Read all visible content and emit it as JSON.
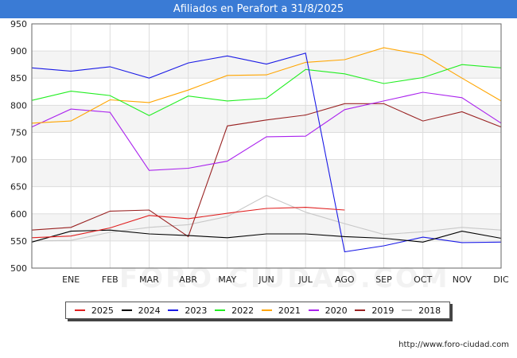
{
  "header": {
    "title": "Afiliados en Perafort a 31/8/2025"
  },
  "watermark": "FORO-CIUDAD.COM",
  "footer": {
    "url": "http://www.foro-ciudad.com"
  },
  "chart_data": {
    "type": "line",
    "title": "Afiliados en Perafort a 31/8/2025",
    "categories": [
      "",
      "ENE",
      "FEB",
      "MAR",
      "ABR",
      "MAY",
      "JUN",
      "JUL",
      "AGO",
      "SEP",
      "OCT",
      "NOV",
      "DIC"
    ],
    "ylim": [
      500,
      950
    ],
    "yticks": [
      500,
      550,
      600,
      650,
      700,
      750,
      800,
      850,
      900,
      950
    ],
    "grid": true,
    "legend_position": "bottom",
    "series": [
      {
        "name": "2025",
        "color": "#e02020",
        "values": [
          556,
          559,
          574,
          597,
          591,
          601,
          610,
          612,
          607,
          null,
          null,
          null,
          null
        ]
      },
      {
        "name": "2024",
        "color": "#000000",
        "values": [
          548,
          568,
          570,
          563,
          560,
          556,
          563,
          563,
          558,
          555,
          548,
          568,
          555
        ]
      },
      {
        "name": "2023",
        "color": "#1a1ae6",
        "values": [
          869,
          863,
          871,
          850,
          878,
          891,
          876,
          896,
          530,
          541,
          557,
          547,
          548
        ]
      },
      {
        "name": "2022",
        "color": "#22ee22",
        "values": [
          809,
          826,
          818,
          781,
          817,
          808,
          813,
          866,
          858,
          840,
          851,
          875,
          869
        ]
      },
      {
        "name": "2021",
        "color": "#ffa500",
        "values": [
          767,
          771,
          810,
          805,
          828,
          855,
          856,
          879,
          884,
          906,
          893,
          850,
          808
        ]
      },
      {
        "name": "2020",
        "color": "#aa22ee",
        "values": [
          760,
          793,
          787,
          680,
          684,
          697,
          742,
          743,
          792,
          808,
          824,
          814,
          767
        ]
      },
      {
        "name": "2019",
        "color": "#992222",
        "values": [
          570,
          575,
          605,
          607,
          558,
          762,
          773,
          782,
          803,
          803,
          771,
          788,
          760
        ]
      },
      {
        "name": "2018",
        "color": "#c8c8c8",
        "values": [
          550,
          551,
          566,
          575,
          580,
          595,
          634,
          603,
          582,
          562,
          567,
          575,
          570
        ]
      }
    ]
  }
}
